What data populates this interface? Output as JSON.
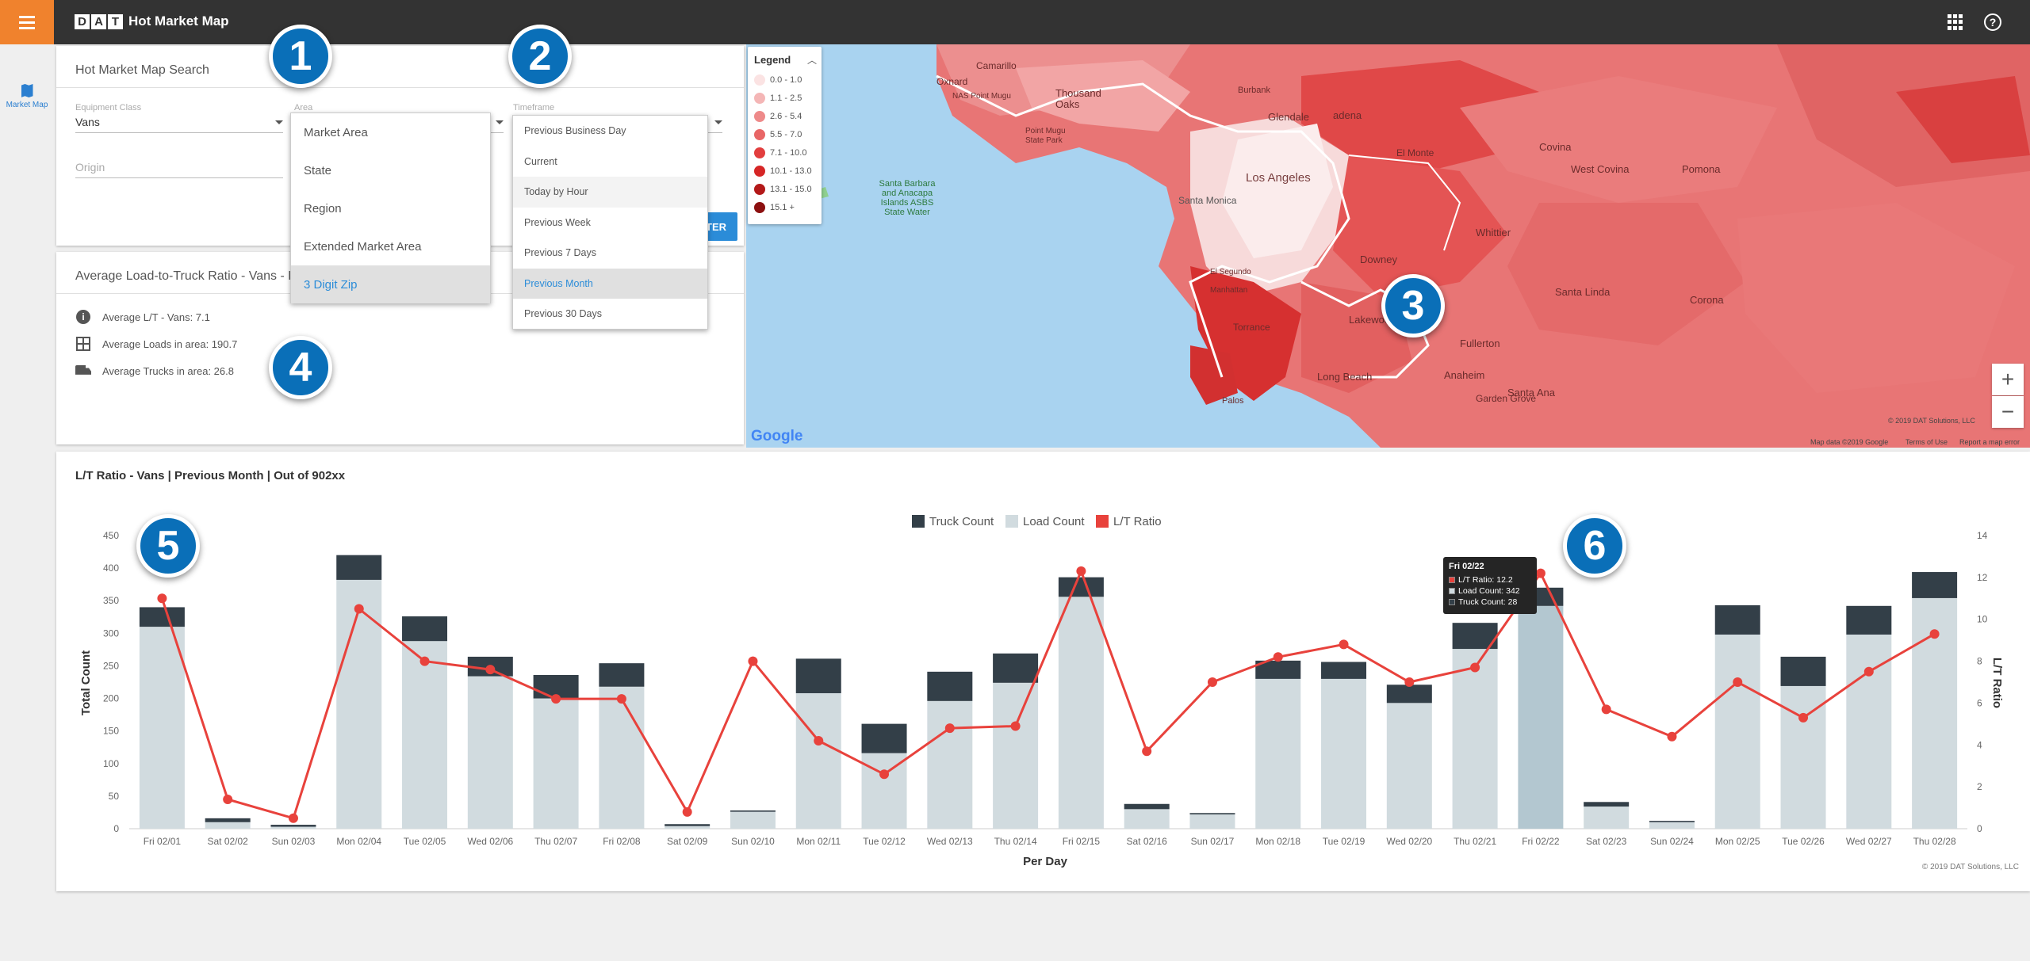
{
  "app": {
    "title": "Hot Market Map",
    "logo_letters": [
      "D",
      "A",
      "T"
    ]
  },
  "nav": {
    "market_map_label": "Market Map"
  },
  "search": {
    "title": "Hot Market Map Search",
    "equipment_label": "Equipment Class",
    "equipment_value": "Vans",
    "area_label": "Area",
    "timeframe_label": "Timeframe",
    "origin_placeholder": "Origin",
    "filter_button": "TER"
  },
  "area_dropdown": {
    "options": [
      "Market Area",
      "State",
      "Region",
      "Extended Market Area",
      "3 Digit Zip"
    ],
    "selected": "3 Digit Zip"
  },
  "timeframe_dropdown": {
    "options": [
      "Previous Business Day",
      "Current",
      "Today by Hour",
      "Previous Week",
      "Previous 7 Days",
      "Previous Month",
      "Previous 30 Days"
    ],
    "selected": "Previous Month"
  },
  "averages": {
    "title": "Average Load-to-Truck Ratio - Vans - Pr",
    "lt": "Average L/T - Vans: 7.1",
    "loads": "Average Loads in area: 190.7",
    "trucks": "Average Trucks in area: 26.8"
  },
  "legend": {
    "title": "Legend",
    "items": [
      {
        "label": "0.0 - 1.0",
        "color": "#fbe3e3"
      },
      {
        "label": "1.1 - 2.5",
        "color": "#f4b6b6"
      },
      {
        "label": "2.6 - 5.4",
        "color": "#ee8a8a"
      },
      {
        "label": "5.5 - 7.0",
        "color": "#e86666"
      },
      {
        "label": "7.1 - 10.0",
        "color": "#e23e3e"
      },
      {
        "label": "10.1 - 13.0",
        "color": "#d62626"
      },
      {
        "label": "13.1 - 15.0",
        "color": "#b31919"
      },
      {
        "label": "15.1 +",
        "color": "#8c1010"
      }
    ]
  },
  "map": {
    "labels": {
      "camarillo": "Camarillo",
      "oxnard": "Oxnard",
      "thousand_oaks": "Thousand Oaks",
      "burbank": "Burbank",
      "glendale": "Glendale",
      "pasadena": "adena",
      "nas_point_mugu": "NAS Point Mugu",
      "point_mugu_park": "Point Mugu State Park",
      "santa_barbara": "Santa Barbara and Anacapa Islands ASBS State Water",
      "los_angeles": "Los Angeles",
      "santa_monica": "Santa Monica",
      "west_covina": "West Covina",
      "covina": "Covina",
      "pomona": "Pomona",
      "el_monte": "El Monte",
      "downey": "Downey",
      "whittier": "Whittier",
      "lakewood": "Lakewood",
      "fullerton": "Fullerton",
      "anaheim": "Anaheim",
      "santa_linda": "Santa Linda",
      "corona": "Corona",
      "long_beach": "Long Beach",
      "torrance": "Torrance",
      "palos": "Palos",
      "garden_grove": "Garden Grove",
      "santa_ana": "Santa Ana",
      "el_segundo": "El Segundo",
      "manhattan": "Manhattan"
    },
    "copyright": "© 2019 DAT Solutions, LLC",
    "map_data": "Map data ©2019 Google",
    "terms": "Terms of Use",
    "report": "Report a map error",
    "google": "Google"
  },
  "chart_panel": {
    "title": "L/T Ratio - Vans | Previous Month | Out of 902xx",
    "copyright": "© 2019 DAT Solutions, LLC"
  },
  "tooltip": {
    "title": "Fri 02/22",
    "lt": "L/T Ratio: 12.2",
    "load": "Load Count: 342",
    "truck": "Truck Count: 28"
  },
  "badges": [
    "1",
    "2",
    "3",
    "4",
    "5",
    "6"
  ],
  "colors": {
    "accent_orange": "#f0822d",
    "brand_blue": "#2b8cd8",
    "badge_blue": "#0a6fb8",
    "truck_color": "#333f48",
    "load_color": "#d1dbdf",
    "line_color": "#e8423c",
    "highlight_bar": "#b3c7d0"
  },
  "chart_data": {
    "type": "bar",
    "xlabel": "Per Day",
    "ylabel": "Total Count",
    "y2label": "L/T Ratio",
    "ylim": [
      0,
      450
    ],
    "y2lim": [
      0,
      14
    ],
    "yticks": [
      0,
      50,
      100,
      150,
      200,
      250,
      300,
      350,
      400,
      450
    ],
    "y2ticks": [
      0,
      2,
      4,
      6,
      8,
      10,
      12,
      14
    ],
    "legend_position": "top-center",
    "grid": false,
    "categories": [
      "Fri 02/01",
      "Sat 02/02",
      "Sun 02/03",
      "Mon 02/04",
      "Tue 02/05",
      "Wed 02/06",
      "Thu 02/07",
      "Fri 02/08",
      "Sat 02/09",
      "Sun 02/10",
      "Mon 02/11",
      "Tue 02/12",
      "Wed 02/13",
      "Thu 02/14",
      "Fri 02/15",
      "Sat 02/16",
      "Sun 02/17",
      "Mon 02/18",
      "Tue 02/19",
      "Wed 02/20",
      "Thu 02/21",
      "Fri 02/22",
      "Sat 02/23",
      "Sun 02/24",
      "Mon 02/25",
      "Tue 02/26",
      "Wed 02/27",
      "Thu 02/28"
    ],
    "series": [
      {
        "name": "Truck Count",
        "axis": "left",
        "kind": "stacked-bar",
        "values": [
          30,
          6,
          3,
          38,
          38,
          30,
          36,
          36,
          3,
          2,
          53,
          45,
          45,
          45,
          30,
          8,
          2,
          28,
          26,
          28,
          40,
          28,
          7,
          2,
          45,
          45,
          44,
          40
        ]
      },
      {
        "name": "Load Count",
        "axis": "left",
        "kind": "stacked-bar",
        "values": [
          310,
          10,
          3,
          382,
          288,
          234,
          200,
          218,
          4,
          26,
          208,
          116,
          196,
          224,
          356,
          30,
          22,
          230,
          230,
          193,
          276,
          342,
          34,
          10,
          298,
          219,
          298,
          354
        ]
      },
      {
        "name": "L/T Ratio",
        "axis": "right",
        "kind": "line",
        "values": [
          11.0,
          1.4,
          0.5,
          10.5,
          8.0,
          7.6,
          6.2,
          6.2,
          0.8,
          8.0,
          4.2,
          2.6,
          4.8,
          4.9,
          12.3,
          3.7,
          7.0,
          8.2,
          8.8,
          7.0,
          7.7,
          12.2,
          5.7,
          4.4,
          7.0,
          5.3,
          7.5,
          9.3
        ]
      }
    ],
    "highlighted_category": "Fri 02/22"
  }
}
